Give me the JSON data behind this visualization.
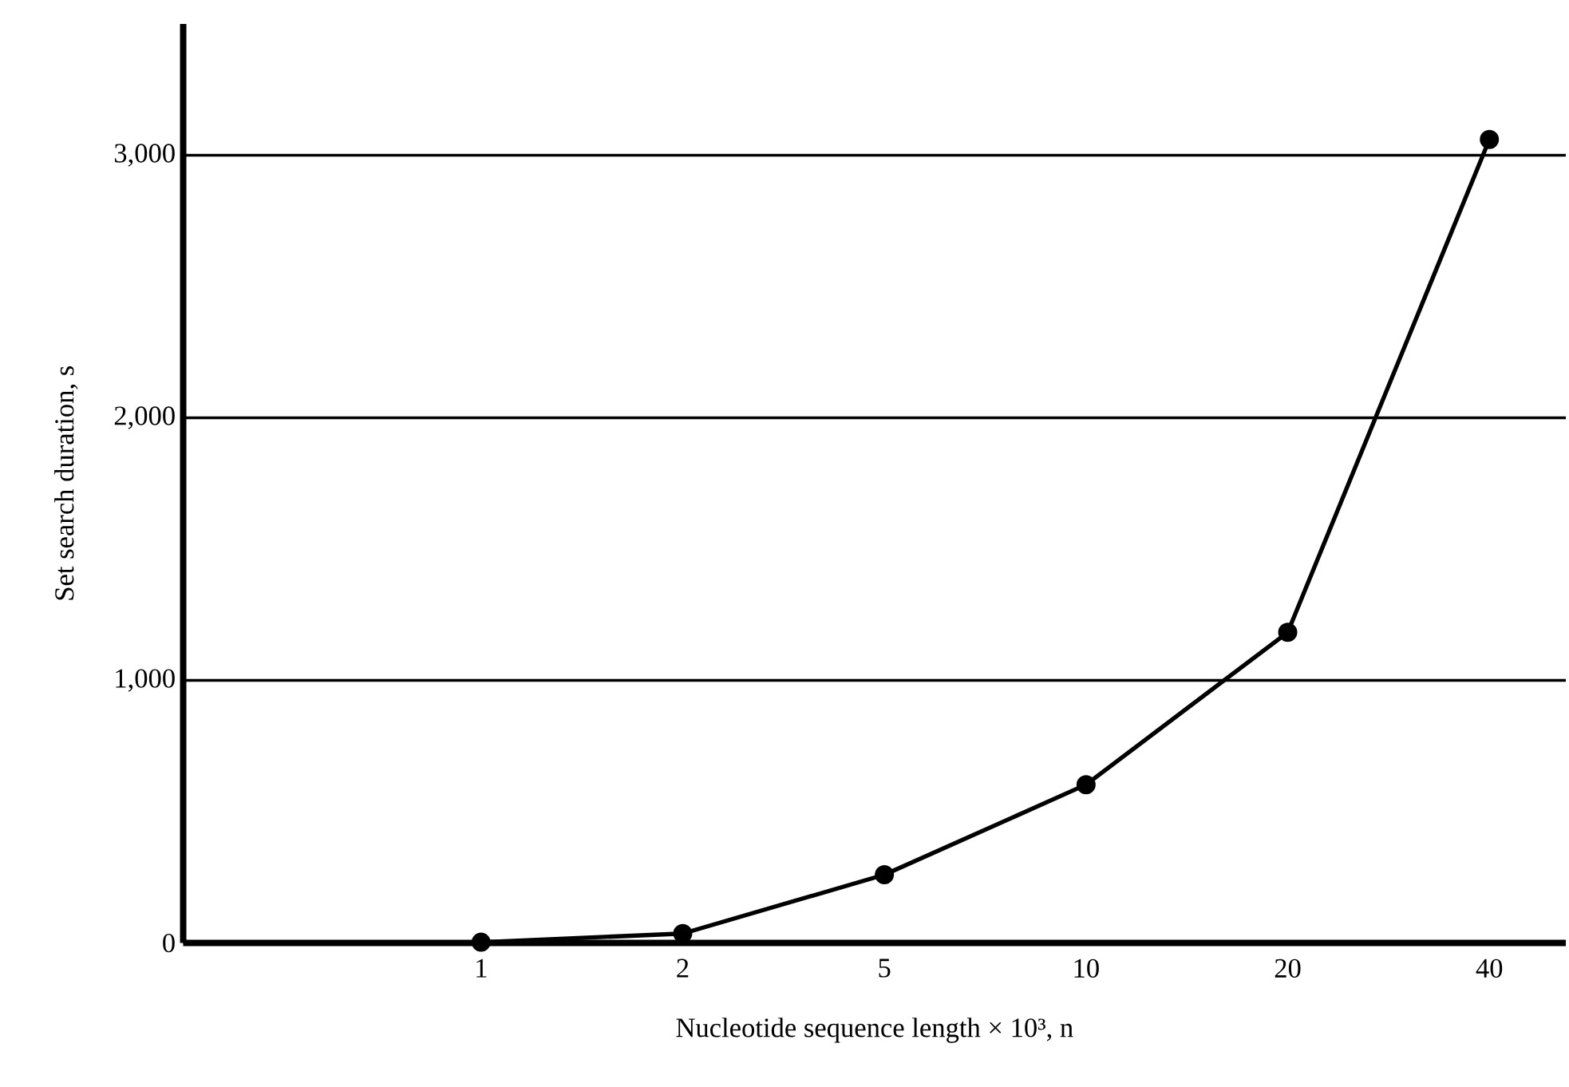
{
  "chart_data": {
    "type": "line",
    "xlabel": "Nucleotide sequence length × 10³, n",
    "ylabel": "Set search duration, s",
    "categories": [
      "1",
      "2",
      "5",
      "10",
      "20",
      "40"
    ],
    "series": [
      {
        "color": "#000000",
        "values": [
          3,
          36,
          260,
          603,
          1183,
          3060
        ]
      }
    ],
    "ylim": [
      0,
      3500
    ],
    "yticks": [
      0,
      {
        "value": 1000,
        "label": "1,000"
      },
      {
        "value": 2000,
        "label": "2,000"
      },
      {
        "value": 3000,
        "label": "3,000"
      }
    ],
    "grid": "y",
    "marker": "circle",
    "line_style": "solid"
  }
}
